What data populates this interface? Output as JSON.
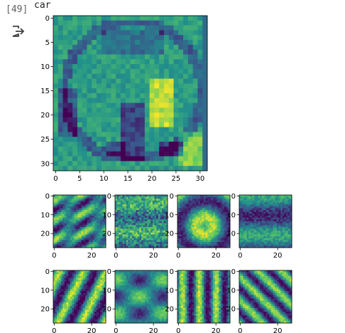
{
  "cell": {
    "execution_count": "[49]",
    "output_icon": "output-redirect-icon"
  },
  "output": {
    "printed_label": "car"
  },
  "colormap": "viridis",
  "chart_data": [
    {
      "type": "heatmap",
      "title": "",
      "xlim": [
        -0.5,
        31.5
      ],
      "ylim": [
        31.5,
        -0.5
      ],
      "x_ticks": [
        "0",
        "5",
        "10",
        "15",
        "20",
        "25",
        "30"
      ],
      "y_ticks": [
        "0",
        "5",
        "10",
        "15",
        "20",
        "25",
        "30"
      ],
      "content": "32x32 grayscale car image (viridis)"
    },
    {
      "type": "heatmap",
      "panel": 1,
      "xlim": [
        -0.5,
        27.5
      ],
      "ylim": [
        27.5,
        -0.5
      ],
      "x_ticks": [
        "0",
        "20"
      ],
      "y_ticks": [
        "0",
        "10",
        "20"
      ]
    },
    {
      "type": "heatmap",
      "panel": 2,
      "xlim": [
        -0.5,
        27.5
      ],
      "ylim": [
        27.5,
        -0.5
      ],
      "x_ticks": [
        "0",
        "20"
      ],
      "y_ticks": [
        "0",
        "10",
        "20"
      ]
    },
    {
      "type": "heatmap",
      "panel": 3,
      "xlim": [
        -0.5,
        27.5
      ],
      "ylim": [
        27.5,
        -0.5
      ],
      "x_ticks": [
        "0",
        "20"
      ],
      "y_ticks": [
        "0",
        "10",
        "20"
      ]
    },
    {
      "type": "heatmap",
      "panel": 4,
      "xlim": [
        -0.5,
        27.5
      ],
      "ylim": [
        27.5,
        -0.5
      ],
      "x_ticks": [
        "0",
        "20"
      ],
      "y_ticks": [
        "0",
        "10",
        "20"
      ]
    },
    {
      "type": "heatmap",
      "panel": 5,
      "xlim": [
        -0.5,
        27.5
      ],
      "ylim": [
        27.5,
        -0.5
      ],
      "x_ticks": [
        "0",
        "20"
      ],
      "y_ticks": [
        "0",
        "10",
        "20"
      ]
    },
    {
      "type": "heatmap",
      "panel": 6,
      "xlim": [
        -0.5,
        27.5
      ],
      "ylim": [
        27.5,
        -0.5
      ],
      "x_ticks": [
        "0",
        "20"
      ],
      "y_ticks": [
        "0",
        "10",
        "20"
      ]
    },
    {
      "type": "heatmap",
      "panel": 7,
      "xlim": [
        -0.5,
        27.5
      ],
      "ylim": [
        27.5,
        -0.5
      ],
      "x_ticks": [
        "0",
        "20"
      ],
      "y_ticks": [
        "0",
        "10",
        "20"
      ]
    },
    {
      "type": "heatmap",
      "panel": 8,
      "xlim": [
        -0.5,
        27.5
      ],
      "ylim": [
        27.5,
        -0.5
      ],
      "x_ticks": [
        "0",
        "20"
      ],
      "y_ticks": [
        "0",
        "10",
        "20"
      ]
    }
  ]
}
